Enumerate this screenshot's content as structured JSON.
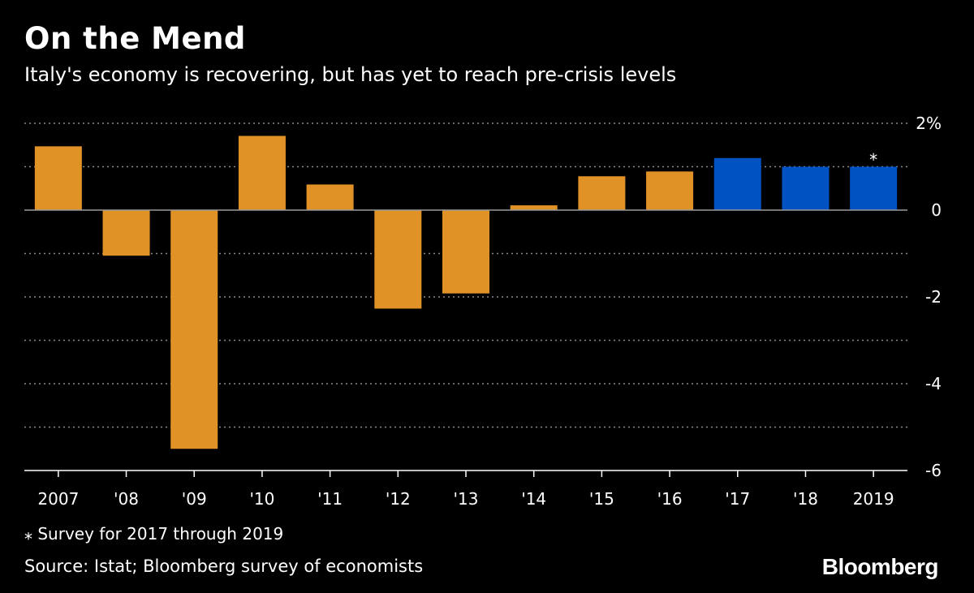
{
  "title": "On the Mend",
  "subtitle": "Italy's economy is recovering, but has yet to reach pre-crisis levels",
  "footnote": "⁎ Survey for 2017 through 2019",
  "source": "Source: Istat; Bloomberg survey of economists",
  "brand": "Bloomberg",
  "chart_data": {
    "type": "bar",
    "categories": [
      "2007",
      "'08",
      "'09",
      "'10",
      "'11",
      "'12",
      "'13",
      "'14",
      "'15",
      "'16",
      "'17",
      "'18",
      "2019"
    ],
    "values": [
      1.47,
      -1.05,
      -5.5,
      1.71,
      0.59,
      -2.27,
      -1.92,
      0.11,
      0.78,
      0.89,
      1.2,
      1.0,
      1.0
    ],
    "bar_colors": [
      "#e19227",
      "#e19227",
      "#e19227",
      "#e19227",
      "#e19227",
      "#e19227",
      "#e19227",
      "#e19227",
      "#e19227",
      "#e19227",
      "#0051c2",
      "#0051c2",
      "#0051c2"
    ],
    "ylim": [
      -6,
      2
    ],
    "yticks": [
      2,
      0,
      -2,
      -4,
      -6
    ],
    "ytick_labels": [
      "2%",
      "0",
      "-2",
      "-4",
      "-6"
    ],
    "gridlines_at": [
      2,
      1,
      -1,
      -2,
      -3,
      -4,
      -5
    ],
    "grid": true,
    "y_axis_side": "right",
    "annotations": [
      {
        "category": "2019",
        "text": "⁎"
      }
    ],
    "xlabel": "",
    "ylabel": ""
  }
}
